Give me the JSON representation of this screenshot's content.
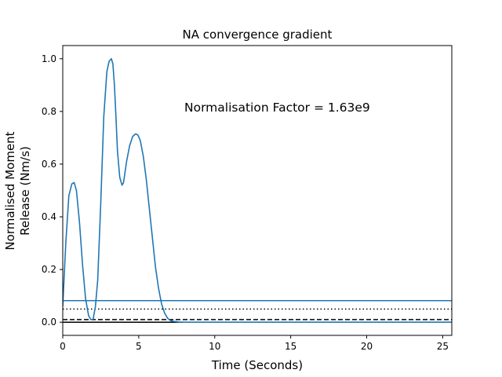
{
  "chart_data": {
    "type": "line",
    "title": "NA convergence gradient",
    "xlabel": "Time (Seconds)",
    "ylabel_lines": [
      "Normalised Moment",
      "Release (Nm/s)"
    ],
    "xlim": [
      0,
      25.6
    ],
    "ylim": [
      -0.05,
      1.05
    ],
    "xticks": [
      0,
      5,
      10,
      15,
      20,
      25
    ],
    "yticks": [
      0.0,
      0.2,
      0.4,
      0.6,
      0.8,
      1.0
    ],
    "xtick_labels": [
      "0",
      "5",
      "10",
      "15",
      "20",
      "25"
    ],
    "ytick_labels": [
      "0.0",
      "0.2",
      "0.4",
      "0.6",
      "0.8",
      "1.0"
    ],
    "grid": false,
    "annotation": "Normalisation Factor = 1.63e9",
    "series": [
      {
        "color": "#1f77b4",
        "x": [
          0,
          0.2,
          0.4,
          0.6,
          0.75,
          0.9,
          1.1,
          1.3,
          1.5,
          1.7,
          1.85,
          2.0,
          2.15,
          2.3,
          2.5,
          2.7,
          2.9,
          3.05,
          3.2,
          3.3,
          3.4,
          3.5,
          3.6,
          3.75,
          3.9,
          4.0,
          4.1,
          4.2,
          4.4,
          4.6,
          4.8,
          4.95,
          5.1,
          5.3,
          5.5,
          5.7,
          5.9,
          6.1,
          6.3,
          6.5,
          6.7,
          6.9,
          7.1,
          7.3,
          7.6,
          8.0,
          9.0,
          10,
          15,
          20,
          25.6
        ],
        "y": [
          0.06,
          0.3,
          0.48,
          0.525,
          0.53,
          0.5,
          0.38,
          0.22,
          0.09,
          0.025,
          0.01,
          0.012,
          0.06,
          0.16,
          0.45,
          0.78,
          0.95,
          0.99,
          1.0,
          0.98,
          0.9,
          0.78,
          0.65,
          0.55,
          0.52,
          0.53,
          0.57,
          0.61,
          0.67,
          0.705,
          0.715,
          0.71,
          0.69,
          0.63,
          0.54,
          0.43,
          0.32,
          0.21,
          0.13,
          0.07,
          0.035,
          0.015,
          0.006,
          0.003,
          0.001,
          0.0,
          0.0,
          0.0,
          0.0,
          0.0,
          0.0
        ]
      }
    ],
    "hlines": [
      {
        "y": 0.082,
        "color": "#1f77b4",
        "style": "solid"
      },
      {
        "y": 0.05,
        "color": "#000000",
        "style": "dotted"
      },
      {
        "y": 0.01,
        "color": "#000000",
        "style": "dashed"
      },
      {
        "y": 0.0,
        "color": "#000000",
        "style": "solid"
      }
    ]
  }
}
